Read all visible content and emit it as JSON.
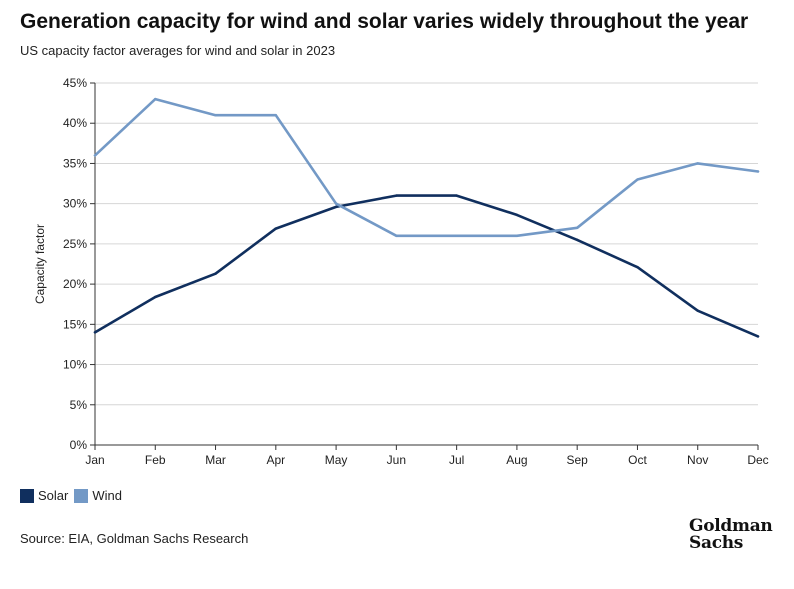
{
  "header": {
    "title": "Generation capacity for wind and solar varies widely throughout the year",
    "subtitle": "US capacity factor averages for wind and solar in 2023"
  },
  "footer": {
    "source": "Source: EIA, Goldman Sachs Research",
    "logo_line1": "Goldman",
    "logo_line2": "Sachs"
  },
  "chart_data": {
    "type": "line",
    "title": "Generation capacity for wind and solar varies widely throughout the year",
    "subtitle": "US capacity factor averages for wind and solar in 2023",
    "xlabel": "",
    "ylabel": "Capacity factor",
    "ylim": [
      0,
      45
    ],
    "yticks": [
      0,
      5,
      10,
      15,
      20,
      25,
      30,
      35,
      40,
      45
    ],
    "ytick_labels": [
      "0%",
      "5%",
      "10%",
      "15%",
      "20%",
      "25%",
      "30%",
      "35%",
      "40%",
      "45%"
    ],
    "categories": [
      "Jan",
      "Feb",
      "Mar",
      "Apr",
      "May",
      "Jun",
      "Jul",
      "Aug",
      "Sep",
      "Oct",
      "Nov",
      "Dec"
    ],
    "grid": true,
    "legend_position": "bottom-left",
    "series": [
      {
        "name": "Solar",
        "color": "#102f5e",
        "values": [
          14,
          18.4,
          21.3,
          26.9,
          29.6,
          31,
          31,
          28.6,
          25.5,
          22.1,
          16.7,
          13.5
        ]
      },
      {
        "name": "Wind",
        "color": "#7399c6",
        "values": [
          36,
          43,
          41,
          41,
          30,
          26,
          26,
          26,
          27,
          33,
          35,
          34
        ]
      }
    ]
  }
}
